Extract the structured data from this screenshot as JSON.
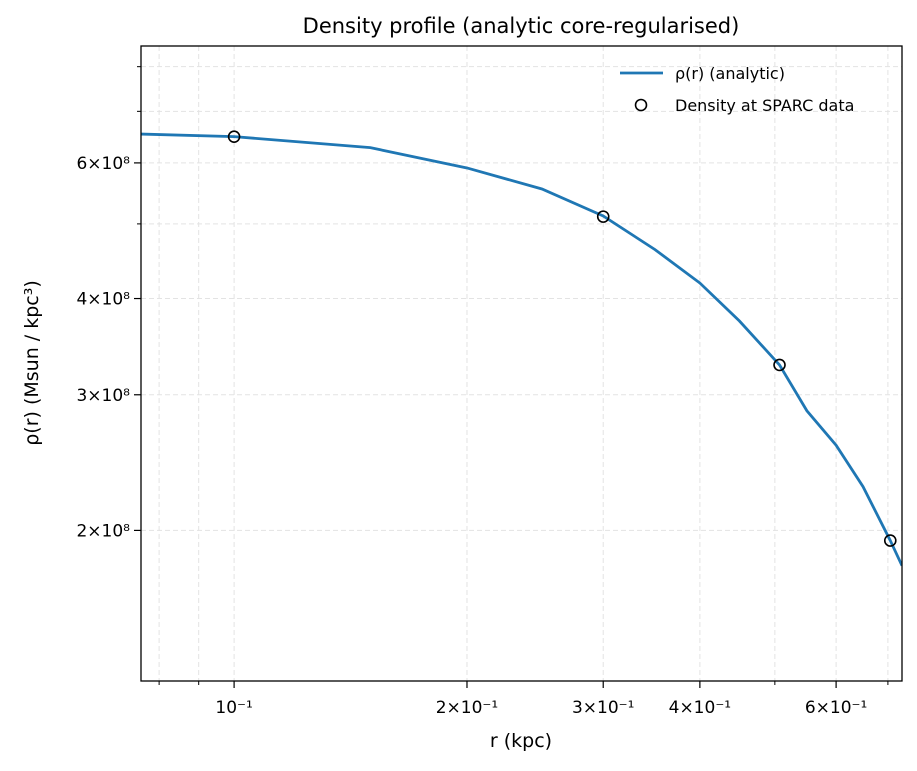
{
  "chart_data": {
    "type": "line",
    "title": "Density profile (analytic core-regularised)",
    "xlabel": "r (kpc)",
    "ylabel": "ρ(r) (Msun / kpc³)",
    "xscale": "log",
    "yscale": "log",
    "xlim": [
      0.0758,
      0.73
    ],
    "ylim": [
      127500000,
      851000000
    ],
    "xticks": [
      {
        "value": 0.1,
        "label": "10⁻¹"
      },
      {
        "value": 0.2,
        "label": "2×10⁻¹"
      },
      {
        "value": 0.3,
        "label": "3×10⁻¹"
      },
      {
        "value": 0.4,
        "label": "4×10⁻¹"
      },
      {
        "value": 0.6,
        "label": "6×10⁻¹"
      }
    ],
    "xminorticks": [
      0.08,
      0.09,
      0.5,
      0.7
    ],
    "yticks": [
      {
        "value": 200000000,
        "label": "2×10⁸"
      },
      {
        "value": 300000000,
        "label": "3×10⁸"
      },
      {
        "value": 400000000,
        "label": "4×10⁸"
      },
      {
        "value": 600000000,
        "label": "6×10⁸"
      }
    ],
    "yminorticks": [
      500000000,
      700000000,
      800000000
    ],
    "grid": true,
    "legend": "upper right",
    "series": [
      {
        "name": "ρ(r) (analytic)",
        "kind": "line",
        "color": "#1f77b4",
        "x": [
          0.0758,
          0.1,
          0.15,
          0.2,
          0.25,
          0.3,
          0.35,
          0.4,
          0.45,
          0.507,
          0.55,
          0.6,
          0.65,
          0.705,
          0.73
        ],
        "values": [
          654000000,
          649000000,
          628000000,
          591000000,
          555000000,
          512000000,
          463000000,
          419000000,
          374000000,
          328000000,
          286000000,
          258000000,
          228000000,
          194000000,
          180000000
        ]
      },
      {
        "name": "Density at SPARC data",
        "kind": "scatter",
        "color": "#000000",
        "x": [
          0.1,
          0.3,
          0.507,
          0.705
        ],
        "values": [
          649000000,
          511000000,
          328000000,
          194000000
        ]
      }
    ]
  }
}
